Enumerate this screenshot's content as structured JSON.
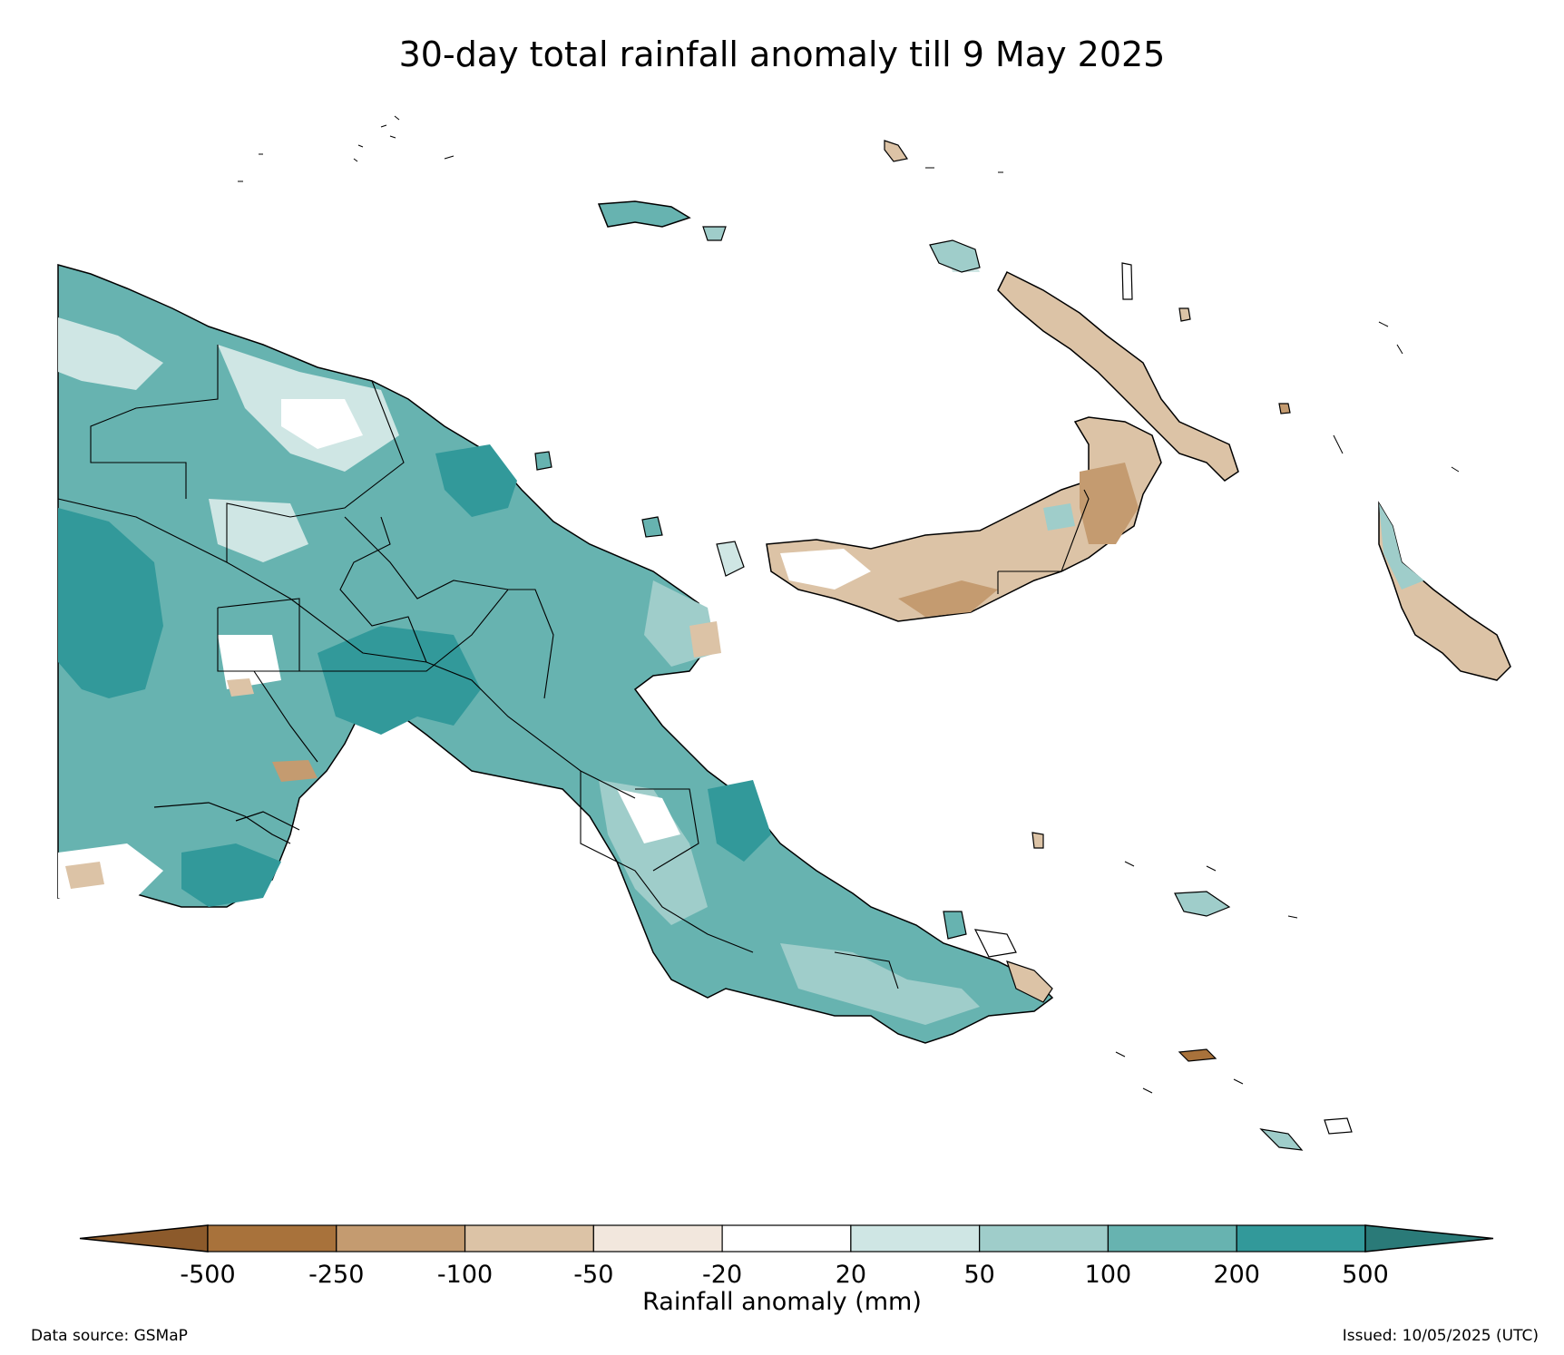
{
  "title": "30-day total rainfall anomaly till 9 May 2025",
  "colorbar": {
    "label": "Rainfall anomaly (mm)",
    "ticks": [
      "-500",
      "-250",
      "-100",
      "-50",
      "-20",
      "20",
      "50",
      "100",
      "200",
      "500"
    ],
    "colors": [
      "#8c5a2b",
      "#a8723b",
      "#c49b70",
      "#dcc3a6",
      "#f2e7dd",
      "#ffffff",
      "#cfe6e4",
      "#9fcdca",
      "#67b3b0",
      "#32999a",
      "#2a7a78"
    ]
  },
  "footer": {
    "source": "Data source: GSMaP",
    "issued": "Issued: 10/05/2025 (UTC)"
  }
}
